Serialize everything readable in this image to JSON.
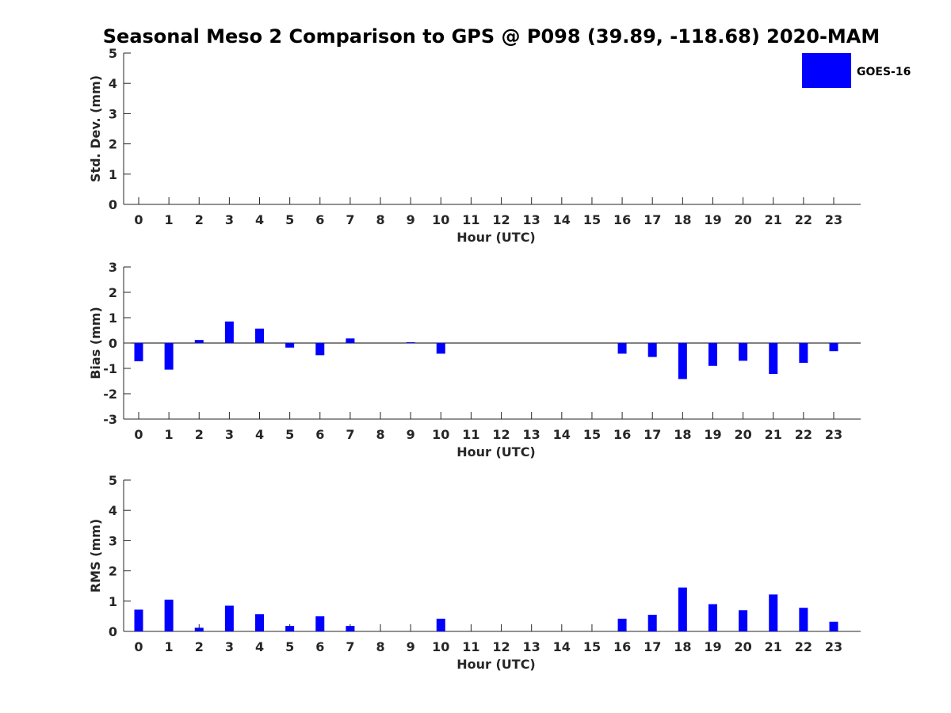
{
  "title": "Seasonal Meso 2 Comparison to GPS @ P098 (39.89, -118.68) 2020-MAM",
  "legend": {
    "label": "GOES-16",
    "color": "#0000ff"
  },
  "chart_data": [
    {
      "type": "bar",
      "xlabel": "Hour (UTC)",
      "ylabel": "Std. Dev. (mm)",
      "ylim": [
        0,
        5
      ],
      "yticks": [
        0,
        1,
        2,
        3,
        4,
        5
      ],
      "categories": [
        "0",
        "1",
        "2",
        "3",
        "4",
        "5",
        "6",
        "7",
        "8",
        "9",
        "10",
        "11",
        "12",
        "13",
        "14",
        "15",
        "16",
        "17",
        "18",
        "19",
        "20",
        "21",
        "22",
        "23"
      ],
      "series": [
        {
          "name": "GOES-16",
          "values": [
            null,
            null,
            null,
            null,
            null,
            null,
            null,
            null,
            null,
            null,
            null,
            null,
            null,
            null,
            null,
            null,
            null,
            null,
            null,
            null,
            null,
            null,
            null,
            null
          ]
        }
      ]
    },
    {
      "type": "bar",
      "xlabel": "Hour (UTC)",
      "ylabel": "Bias (mm)",
      "ylim": [
        -3,
        3
      ],
      "yticks": [
        -3,
        -2,
        -1,
        0,
        1,
        2,
        3
      ],
      "zero_line": true,
      "categories": [
        "0",
        "1",
        "2",
        "3",
        "4",
        "5",
        "6",
        "7",
        "8",
        "9",
        "10",
        "11",
        "12",
        "13",
        "14",
        "15",
        "16",
        "17",
        "18",
        "19",
        "20",
        "21",
        "22",
        "23"
      ],
      "series": [
        {
          "name": "GOES-16",
          "values": [
            -0.72,
            -1.05,
            0.12,
            0.85,
            0.57,
            -0.18,
            -0.48,
            0.18,
            null,
            0.03,
            -0.42,
            null,
            null,
            null,
            null,
            null,
            -0.42,
            -0.55,
            -1.42,
            -0.9,
            -0.7,
            -1.22,
            -0.78,
            -0.32
          ]
        }
      ]
    },
    {
      "type": "bar",
      "xlabel": "Hour (UTC)",
      "ylabel": "RMS (mm)",
      "ylim": [
        0,
        5
      ],
      "yticks": [
        0,
        1,
        2,
        3,
        4,
        5
      ],
      "categories": [
        "0",
        "1",
        "2",
        "3",
        "4",
        "5",
        "6",
        "7",
        "8",
        "9",
        "10",
        "11",
        "12",
        "13",
        "14",
        "15",
        "16",
        "17",
        "18",
        "19",
        "20",
        "21",
        "22",
        "23"
      ],
      "series": [
        {
          "name": "GOES-16",
          "values": [
            0.72,
            1.05,
            0.12,
            0.85,
            0.57,
            0.18,
            0.5,
            0.18,
            null,
            null,
            0.42,
            null,
            null,
            null,
            null,
            null,
            0.42,
            0.55,
            1.45,
            0.9,
            0.7,
            1.22,
            0.78,
            0.32
          ]
        }
      ]
    }
  ]
}
